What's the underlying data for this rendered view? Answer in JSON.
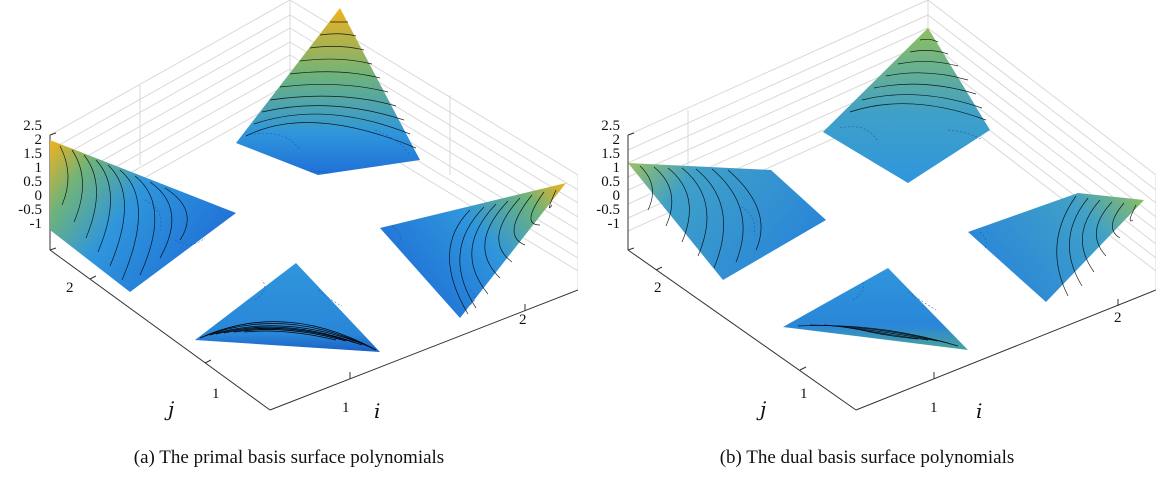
{
  "figures": [
    {
      "id": "a",
      "caption": "(a) The primal basis surface polynomials",
      "z_ticks": [
        "2.5",
        "2",
        "1.5",
        "1",
        "0.5",
        "0",
        "-0.5",
        "-1"
      ],
      "i_ticks": [
        "1",
        "2"
      ],
      "j_ticks": [
        "1",
        "2"
      ],
      "i_label": "i",
      "j_label": "j"
    },
    {
      "id": "b",
      "caption": "(b) The dual basis surface polynomials",
      "z_ticks": [
        "2.5",
        "2",
        "1.5",
        "1",
        "0.5",
        "0",
        "-0.5",
        "-1"
      ],
      "i_ticks": [
        "1",
        "2"
      ],
      "j_ticks": [
        "1",
        "2"
      ],
      "i_label": "i",
      "j_label": "j"
    }
  ],
  "colors": {
    "surface_low": "#1f6fd6",
    "surface_mid": "#2f96dc",
    "surface_green": "#6fb37a",
    "surface_high": "#f2b21c",
    "contour": "#000000",
    "grid": "#d9d9d9",
    "axis": "#333333"
  }
}
